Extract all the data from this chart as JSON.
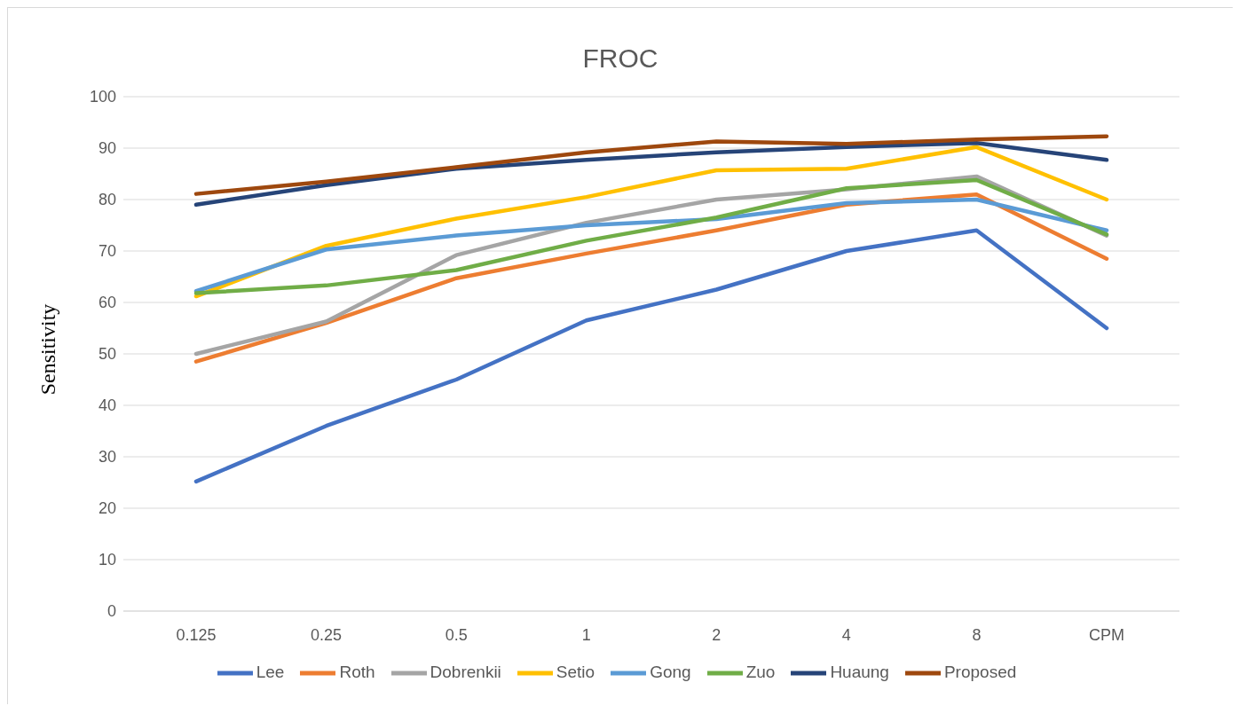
{
  "chart_data": {
    "type": "line",
    "title": "FROC",
    "ylabel": "Sensitivity",
    "categories": [
      "0.125",
      "0.25",
      "0.5",
      "1",
      "2",
      "4",
      "8",
      "CPM"
    ],
    "ylim": [
      0,
      100
    ],
    "yticks": [
      0,
      10,
      20,
      30,
      40,
      50,
      60,
      70,
      80,
      90,
      100
    ],
    "grid": "y",
    "legend": "bottom",
    "marker": "none",
    "line_style": "solid",
    "series": [
      {
        "name": "Lee",
        "color": "#4472c4",
        "values": [
          25.2,
          36,
          45,
          56.5,
          62.5,
          70,
          74,
          55
        ]
      },
      {
        "name": "Roth",
        "color": "#ed7d31",
        "values": [
          48.5,
          56,
          64.7,
          69.5,
          74,
          79,
          81,
          68.5
        ]
      },
      {
        "name": "Dobrenkii",
        "color": "#a5a5a5",
        "values": [
          50,
          56.3,
          69.2,
          75.5,
          80,
          82,
          84.5,
          73
        ]
      },
      {
        "name": "Setio",
        "color": "#ffc000",
        "values": [
          61.2,
          71,
          76.3,
          80.5,
          85.7,
          86,
          90.2,
          80
        ]
      },
      {
        "name": "Gong",
        "color": "#5b9bd5",
        "values": [
          62.2,
          70.3,
          73,
          75,
          76.2,
          79.3,
          80,
          74
        ]
      },
      {
        "name": "Zuo",
        "color": "#70ad47",
        "values": [
          61.8,
          63.3,
          66.3,
          72,
          76.5,
          82.2,
          83.8,
          73.2
        ]
      },
      {
        "name": "Huaung",
        "color": "#264478",
        "values": [
          79,
          82.8,
          86,
          87.7,
          89.2,
          90.2,
          91,
          87.7
        ]
      },
      {
        "name": "Proposed",
        "color": "#9e480e",
        "values": [
          81.1,
          83.5,
          86.3,
          89.2,
          91.3,
          90.8,
          91.7,
          92.3
        ]
      }
    ]
  }
}
